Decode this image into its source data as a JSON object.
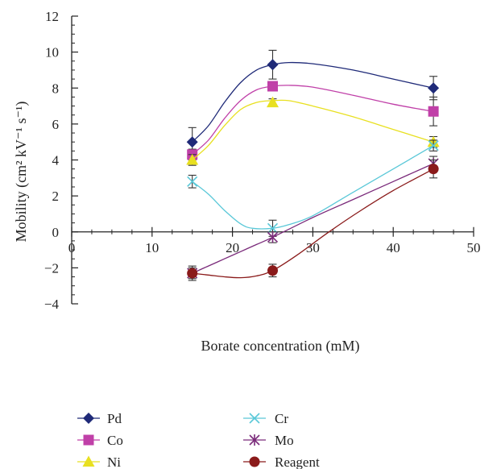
{
  "chart_data": {
    "type": "line",
    "xlabel": "Borate concentration (mM)",
    "ylabel": "Mobility (cm² kV⁻¹ s⁻¹)",
    "xlim": [
      0,
      50
    ],
    "ylim": [
      -4,
      12
    ],
    "xticks": [
      0,
      10,
      20,
      30,
      40,
      50
    ],
    "yticks": [
      -4,
      -2,
      0,
      2,
      4,
      6,
      8,
      10,
      12
    ],
    "xtick_labels": [
      "0",
      "10",
      "20",
      "30",
      "40",
      "50"
    ],
    "ytick_labels": [
      "−4",
      "−2",
      "0",
      "2",
      "4",
      "6",
      "8",
      "10",
      "12"
    ],
    "grid": false,
    "legend_position": "bottom",
    "x": [
      15,
      25,
      45
    ],
    "series": [
      {
        "name": "Pd",
        "marker": "diamond",
        "color": "#1f2a78",
        "values": [
          5.0,
          9.3,
          8.0
        ],
        "errors": [
          0.8,
          0.8,
          0.65
        ],
        "curve": [
          [
            15,
            5.0
          ],
          [
            17,
            5.9
          ],
          [
            19,
            7.2
          ],
          [
            21,
            8.3
          ],
          [
            23,
            9.0
          ],
          [
            25,
            9.3
          ],
          [
            27,
            9.42
          ],
          [
            30,
            9.35
          ],
          [
            35,
            9.0
          ],
          [
            40,
            8.5
          ],
          [
            45,
            8.0
          ]
        ]
      },
      {
        "name": "Co",
        "marker": "square",
        "color": "#c040a8",
        "values": [
          4.3,
          8.1,
          6.7
        ],
        "errors": [
          0.3,
          0.2,
          0.8
        ],
        "curve": [
          [
            15,
            4.3
          ],
          [
            17,
            5.1
          ],
          [
            19,
            6.3
          ],
          [
            21,
            7.3
          ],
          [
            23,
            7.9
          ],
          [
            25,
            8.1
          ],
          [
            27,
            8.15
          ],
          [
            30,
            8.05
          ],
          [
            35,
            7.6
          ],
          [
            40,
            7.1
          ],
          [
            45,
            6.7
          ]
        ]
      },
      {
        "name": "Ni",
        "marker": "triangle",
        "color": "#e8e020",
        "values": [
          4.0,
          7.2,
          5.0
        ],
        "errors": [
          0.3,
          0.2,
          0.3
        ],
        "curve": [
          [
            15,
            4.0
          ],
          [
            17,
            4.8
          ],
          [
            19,
            5.9
          ],
          [
            21,
            6.8
          ],
          [
            23,
            7.2
          ],
          [
            25,
            7.3
          ],
          [
            27,
            7.3
          ],
          [
            30,
            7.0
          ],
          [
            35,
            6.4
          ],
          [
            40,
            5.7
          ],
          [
            45,
            5.0
          ]
        ]
      },
      {
        "name": "Cr",
        "marker": "x",
        "color": "#5ac8d8",
        "values": [
          2.8,
          0.2,
          4.8
        ],
        "errors": [
          0.35,
          0.45,
          0.3
        ],
        "curve": [
          [
            15,
            2.8
          ],
          [
            17,
            2.1
          ],
          [
            19,
            1.2
          ],
          [
            21,
            0.45
          ],
          [
            22.5,
            0.2
          ],
          [
            25,
            0.2
          ],
          [
            27,
            0.4
          ],
          [
            30,
            0.9
          ],
          [
            35,
            2.2
          ],
          [
            40,
            3.5
          ],
          [
            45,
            4.8
          ]
        ]
      },
      {
        "name": "Mo",
        "marker": "star",
        "color": "#7a2a7a",
        "values": [
          -2.3,
          -0.3,
          3.8
        ],
        "errors": [
          0.3,
          0.3,
          0.4
        ],
        "curve": [
          [
            15,
            -2.3
          ],
          [
            17,
            -1.9
          ],
          [
            19,
            -1.5
          ],
          [
            21,
            -1.1
          ],
          [
            23,
            -0.7
          ],
          [
            25,
            -0.3
          ],
          [
            30,
            0.8
          ],
          [
            35,
            1.8
          ],
          [
            40,
            2.8
          ],
          [
            45,
            3.8
          ]
        ]
      },
      {
        "name": "Reagent",
        "marker": "circle",
        "color": "#8a1a1a",
        "values": [
          -2.3,
          -2.15,
          3.5
        ],
        "errors": [
          0.4,
          0.35,
          0.5
        ],
        "curve": [
          [
            15,
            -2.3
          ],
          [
            17,
            -2.4
          ],
          [
            19,
            -2.5
          ],
          [
            21,
            -2.55
          ],
          [
            23,
            -2.45
          ],
          [
            25,
            -2.15
          ],
          [
            28,
            -1.3
          ],
          [
            32,
            0.0
          ],
          [
            36,
            1.2
          ],
          [
            40,
            2.3
          ],
          [
            45,
            3.5
          ]
        ]
      }
    ]
  }
}
